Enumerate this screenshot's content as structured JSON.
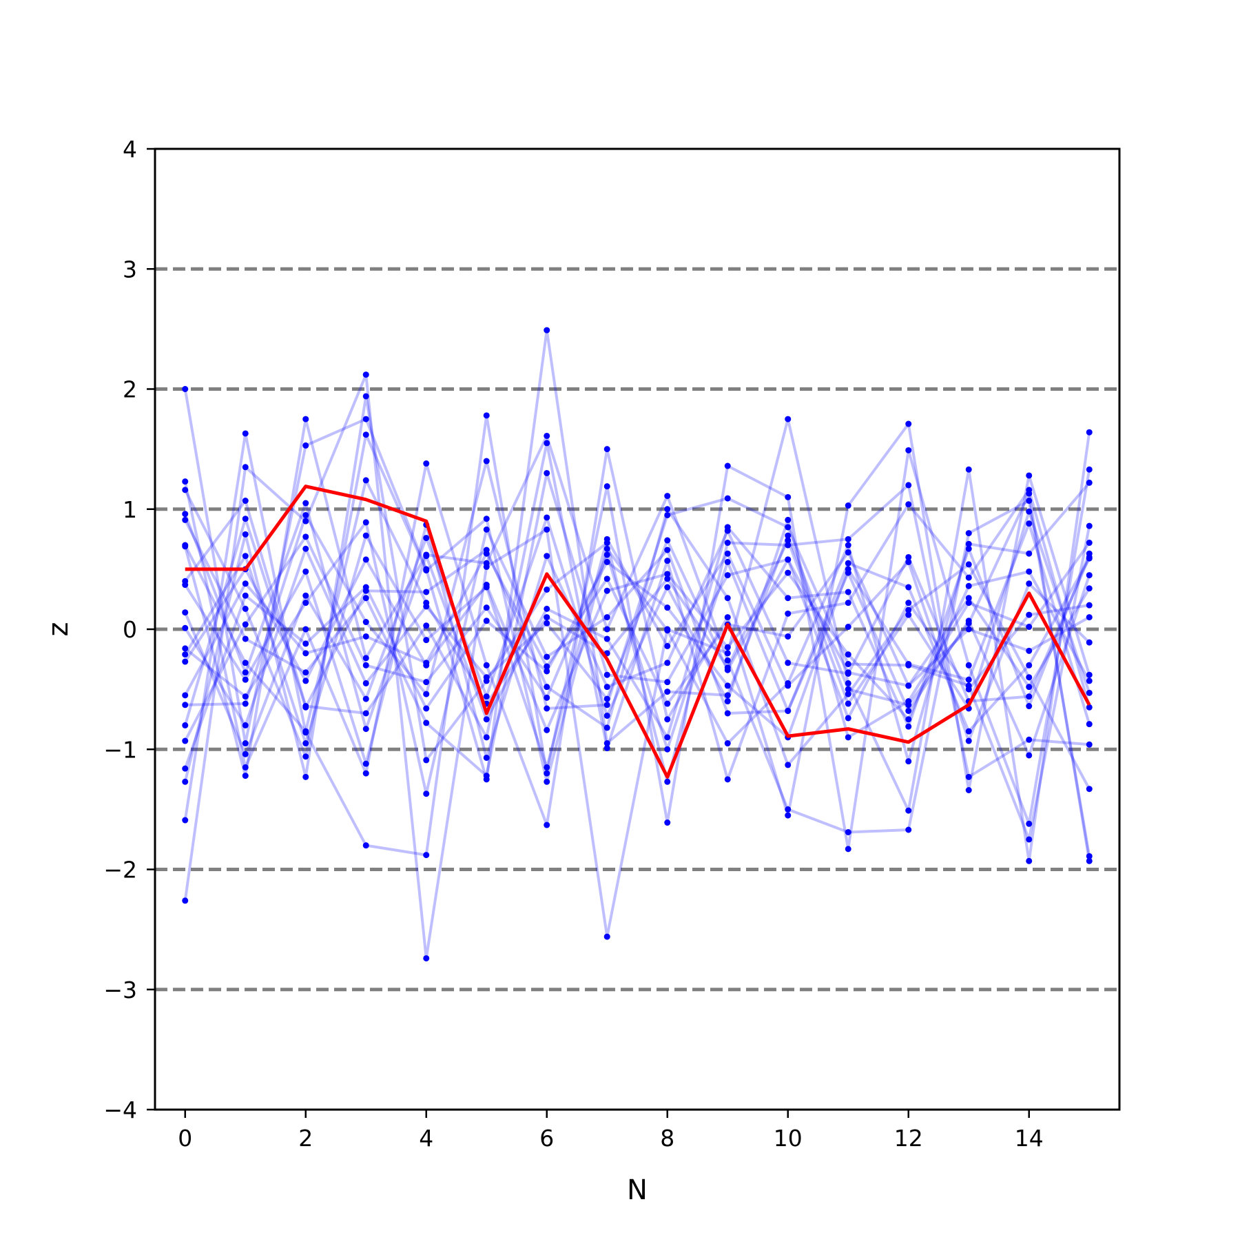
{
  "chart_data": {
    "type": "line",
    "title": "",
    "xlabel": "N",
    "ylabel": "z",
    "xlim": [
      -0.5,
      15.5
    ],
    "ylim": [
      -4,
      4
    ],
    "xticks": [
      0,
      2,
      4,
      6,
      8,
      10,
      12,
      14
    ],
    "xtick_labels": [
      "0",
      "2",
      "4",
      "6",
      "8",
      "10",
      "12",
      "14"
    ],
    "yticks": [
      -4,
      -3,
      -2,
      -1,
      0,
      1,
      2,
      3,
      4
    ],
    "ytick_labels": [
      "−4",
      "−3",
      "−2",
      "−1",
      "0",
      "1",
      "2",
      "3",
      "4"
    ],
    "reference_lines": [
      -3,
      -2,
      -1,
      0,
      1,
      2,
      3
    ],
    "reference_line_color": "#808080",
    "background_series_color": "#0000ff",
    "highlight_color": "#ff0000",
    "x": [
      0,
      1,
      2,
      3,
      4,
      5,
      6,
      7,
      8,
      9,
      10,
      11,
      12,
      13,
      14,
      15
    ],
    "highlight": {
      "values": [
        0.5,
        0.5,
        1.19,
        1.08,
        0.9,
        -0.7,
        0.46,
        -0.25,
        -1.23,
        0.04,
        -0.89,
        -0.83,
        -0.94,
        -0.63,
        0.3,
        -0.63
      ]
    },
    "series": [
      {
        "values": [
          2.0,
          -0.95,
          1.53,
          1.75,
          0.5,
          -1.25,
          2.49,
          -0.95,
          -0.52,
          -0.55,
          0.78,
          -0.5,
          -0.63,
          0.05,
          1.13,
          -1.93
        ]
      },
      {
        "values": [
          -2.26,
          1.35,
          0.9,
          2.12,
          -2.74,
          0.52,
          0.83,
          -2.56,
          0.0,
          -0.2,
          1.75,
          -0.45,
          -1.51,
          1.33,
          -1.93,
          1.64
        ]
      },
      {
        "values": [
          1.23,
          -1.15,
          0.0,
          -1.2,
          1.38,
          -0.3,
          -1.63,
          1.5,
          -0.75,
          0.1,
          -1.55,
          1.03,
          1.71,
          -1.34,
          1.28,
          -0.38
        ]
      },
      {
        "values": [
          -1.59,
          1.63,
          -0.86,
          -1.8,
          -1.88,
          1.78,
          -1.2,
          1.19,
          -1.61,
          1.36,
          1.1,
          -1.83,
          1.49,
          -0.3,
          -1.62,
          1.33
        ]
      },
      {
        "values": [
          0.69,
          -1.22,
          1.75,
          -0.24,
          0.62,
          0.55,
          1.61,
          0.0,
          1.11,
          -0.26,
          -1.5,
          -1.69,
          -1.67,
          0.8,
          1.07,
          -1.89
        ]
      },
      {
        "values": [
          -1.27,
          0.79,
          -1.23,
          1.94,
          -1.09,
          -0.43,
          0.33,
          0.72,
          -1.27,
          0.72,
          0.7,
          0.75,
          1.2,
          -1.23,
          -0.92,
          -0.96
        ]
      },
      {
        "values": [
          1.16,
          0.17,
          -1.06,
          1.62,
          0.49,
          0.92,
          -1.27,
          0.67,
          -0.01,
          -0.95,
          -0.45,
          0.7,
          -1.1,
          0.71,
          0.63,
          1.22
        ]
      },
      {
        "values": [
          -0.63,
          -0.62,
          0.95,
          0.06,
          -0.54,
          1.4,
          -0.66,
          -0.63,
          0.95,
          1.09,
          0.85,
          -0.29,
          -0.3,
          -0.47,
          -1.75,
          0.86
        ]
      },
      {
        "values": [
          0.4,
          1.07,
          -0.64,
          -0.7,
          0.03,
          -0.9,
          1.55,
          -0.99,
          0.57,
          -1.25,
          0.13,
          0.22,
          1.04,
          0.43,
          1.16,
          -0.65
        ]
      },
      {
        "values": [
          -0.16,
          -0.56,
          0.22,
          0.89,
          -1.37,
          0.83,
          -0.23,
          0.1,
          0.66,
          -0.7,
          -0.68,
          0.55,
          0.35,
          -0.85,
          -0.3,
          0.59
        ]
      },
      {
        "values": [
          0.91,
          -0.08,
          -0.36,
          0.26,
          -0.78,
          -1.22,
          1.3,
          -0.38,
          -0.44,
          0.45,
          0.58,
          -0.36,
          -0.47,
          0.26,
          -0.48,
          0.34
        ]
      },
      {
        "values": [
          -0.8,
          0.92,
          -0.65,
          0.32,
          0.31,
          0.66,
          -0.48,
          -0.82,
          1.0,
          0.26,
          -1.13,
          -0.54,
          0.16,
          0.54,
          -0.4,
          -1.33
        ]
      },
      {
        "values": [
          0.14,
          -1.04,
          0.28,
          -0.58,
          0.76,
          -0.56,
          0.93,
          -0.72,
          0.35,
          -0.6,
          0.91,
          -0.9,
          -0.6,
          0.22,
          0.02,
          0.72
        ]
      },
      {
        "values": [
          -0.21,
          0.61,
          -0.95,
          0.78,
          -0.09,
          0.35,
          -1.15,
          0.75,
          -0.14,
          0.63,
          -0.47,
          0.02,
          0.56,
          -0.93,
          0.38,
          -0.11
        ]
      },
      {
        "values": [
          0.96,
          -0.36,
          1.05,
          -0.83,
          0.61,
          -0.75,
          0.17,
          -0.08,
          -0.9,
          0.85,
          0.26,
          0.31,
          -0.81,
          0.67,
          -0.64,
          0.63
        ]
      },
      {
        "values": [
          -1.16,
          0.28,
          -0.12,
          0.35,
          -0.66,
          0.07,
          -0.35,
          0.56,
          0.18,
          -0.47,
          -0.9,
          0.5,
          -0.29,
          -0.42,
          0.88,
          -0.79
        ]
      },
      {
        "values": [
          0.37,
          -0.42,
          0.48,
          -1.12,
          0.87,
          -1.07,
          0.61,
          -0.48,
          -0.28,
          0.82,
          -0.28,
          -0.37,
          0.6,
          -0.6,
          -0.56,
          0.6
        ]
      },
      {
        "values": [
          -0.27,
          0.5,
          -0.43,
          0.58,
          -0.3,
          0.37,
          -0.84,
          0.32,
          0.46,
          -0.15,
          0.47,
          -0.21,
          -0.75,
          0.36,
          0.48,
          -0.43
        ]
      },
      {
        "values": [
          0.01,
          -0.8,
          0.67,
          -0.45,
          0.19,
          -0.4,
          0.05,
          -0.58,
          0.74,
          -0.34,
          0.58,
          -0.74,
          0.22,
          -0.5,
          0.12,
          0.2
        ]
      },
      {
        "values": [
          -0.55,
          0.38,
          -0.2,
          -0.06,
          -0.28,
          0.63,
          -0.31,
          0.42,
          -0.62,
          0.04,
          -0.06,
          0.64,
          -0.47,
          0.0,
          -0.18,
          0.1
        ]
      },
      {
        "values": [
          0.7,
          -0.28,
          -0.85,
          1.24,
          0.22,
          -0.62,
          0.1,
          -0.2,
          0.42,
          -0.32,
          0.74,
          -0.62,
          0.12,
          -0.66,
          0.98,
          -0.53
        ]
      },
      {
        "values": [
          -0.93,
          0.04,
          0.77,
          -0.3,
          -0.44,
          0.18,
          -0.57,
          0.62,
          -1.0,
          0.56,
          -0.68,
          0.47,
          -0.68,
          0.07,
          -1.05,
          0.45
        ]
      }
    ]
  }
}
